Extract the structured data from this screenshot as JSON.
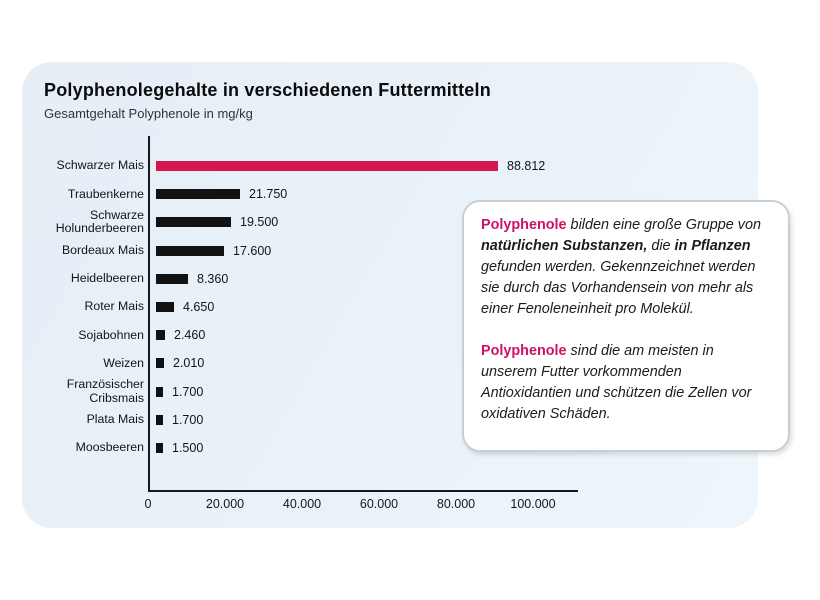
{
  "colors": {
    "highlight_bar": "#D6164E",
    "bar": "#121212",
    "brand_text": "#CE1166",
    "card_bg": "#E9F1F8",
    "box_border": "#C9CED3"
  },
  "chart_data": {
    "type": "bar",
    "orientation": "horizontal",
    "title": "Polyphenolegehalte in verschiedenen Futtermitteln",
    "subtitle": "Gesamtgehalt Polyphenole in mg/kg",
    "xlabel": "",
    "ylabel": "",
    "xlim": [
      0,
      100000
    ],
    "grid": false,
    "legend": false,
    "x_ticks": [
      {
        "label": "0",
        "value": 0
      },
      {
        "label": "20.000",
        "value": 20000
      },
      {
        "label": "40.000",
        "value": 40000
      },
      {
        "label": "60.000",
        "value": 60000
      },
      {
        "label": "80.000",
        "value": 80000
      },
      {
        "label": "100.000",
        "value": 100000
      }
    ],
    "bars": [
      {
        "label": "Schwarzer Mais",
        "label_lines": [
          "Schwarzer Mais"
        ],
        "value": 88812,
        "display": "88.812",
        "highlight": true
      },
      {
        "label": "Traubenkerne",
        "label_lines": [
          "Traubenkerne"
        ],
        "value": 21750,
        "display": "21.750",
        "highlight": false
      },
      {
        "label": "Schwarze Holunderbeeren",
        "label_lines": [
          "Schwarze",
          "Holunderbeeren"
        ],
        "value": 19500,
        "display": "19.500",
        "highlight": false
      },
      {
        "label": "Bordeaux Mais",
        "label_lines": [
          "Bordeaux Mais"
        ],
        "value": 17600,
        "display": "17.600",
        "highlight": false
      },
      {
        "label": "Heidelbeeren",
        "label_lines": [
          "Heidelbeeren"
        ],
        "value": 8360,
        "display": "8.360",
        "highlight": false
      },
      {
        "label": "Roter Mais",
        "label_lines": [
          "Roter Mais"
        ],
        "value": 4650,
        "display": "4.650",
        "highlight": false
      },
      {
        "label": "Sojabohnen",
        "label_lines": [
          "Sojabohnen"
        ],
        "value": 2460,
        "display": "2.460",
        "highlight": false
      },
      {
        "label": "Weizen",
        "label_lines": [
          "Weizen"
        ],
        "value": 2010,
        "display": "2.010",
        "highlight": false
      },
      {
        "label": "Französischer Cribsmais",
        "label_lines": [
          "Französischer",
          "Cribsmais"
        ],
        "value": 1700,
        "display": "1.700",
        "highlight": false
      },
      {
        "label": "Plata Mais",
        "label_lines": [
          "Plata Mais"
        ],
        "value": 1700,
        "display": "1.700",
        "highlight": false
      },
      {
        "label": "Moosbeeren",
        "label_lines": [
          "Moosbeeren"
        ],
        "value": 1500,
        "display": "1.500",
        "highlight": false
      }
    ]
  },
  "infobox": {
    "paragraphs": [
      {
        "segments": [
          {
            "text": "Polyphenole",
            "style": "brand"
          },
          {
            "text": " bilden eine große Gruppe von ",
            "style": "normal"
          },
          {
            "text": "natürlichen Substanzen,",
            "style": "bold"
          },
          {
            "text": " die ",
            "style": "normal"
          },
          {
            "text": "in Pflanzen",
            "style": "bold"
          },
          {
            "text": " gefunden werden. Gekennzeichnet werden sie durch das Vorhandensein von mehr als einer Fenoleneinheit pro Molekül.",
            "style": "normal"
          }
        ]
      },
      {
        "segments": [
          {
            "text": "Polyphenole",
            "style": "brand"
          },
          {
            "text": " sind die am meisten in unserem Futter vorkommenden Antioxidantien und schützen die Zellen vor oxidativen Schäden.",
            "style": "normal"
          }
        ]
      }
    ]
  }
}
